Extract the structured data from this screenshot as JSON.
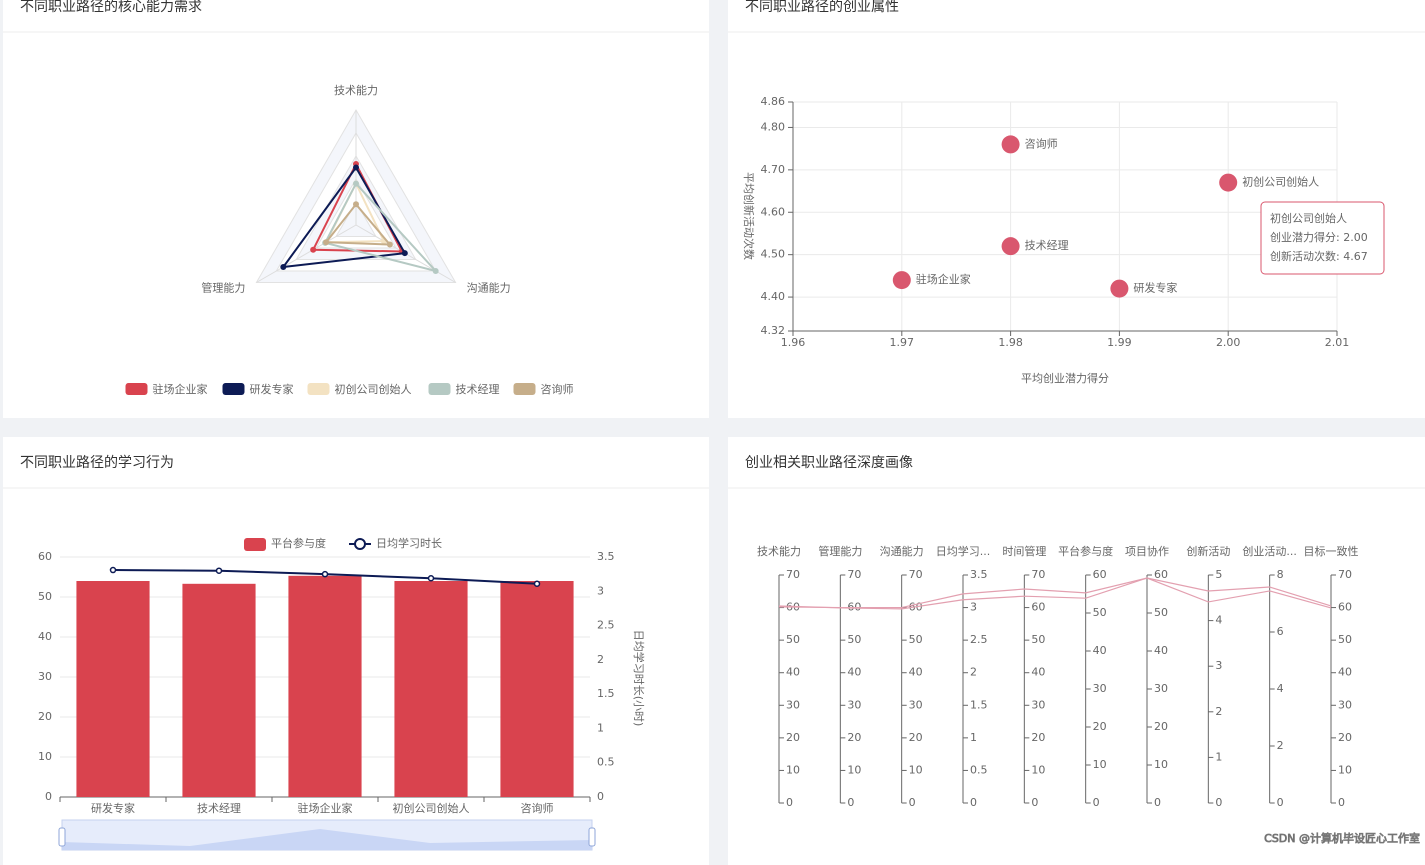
{
  "chart_data": [
    {
      "type": "radar",
      "title": "不同职业路径的核心能力需求",
      "indicators": [
        {
          "name": "技术能力",
          "max": 100
        },
        {
          "name": "沟通能力",
          "max": 100
        },
        {
          "name": "管理能力",
          "max": 100
        }
      ],
      "series": [
        {
          "name": "驻场企业家",
          "color": "#d9434e",
          "values": [
            53,
            46,
            43
          ]
        },
        {
          "name": "研发专家",
          "color": "#0d1b55",
          "values": [
            50,
            49,
            73
          ]
        },
        {
          "name": "初创公司创始人",
          "color": "#f3e2c2",
          "values": [
            36,
            28,
            30
          ]
        },
        {
          "name": "技术经理",
          "color": "#b5c9c3",
          "values": [
            36,
            80,
            31
          ]
        },
        {
          "name": "咨询师",
          "color": "#c6ae8a",
          "values": [
            18,
            34,
            30
          ]
        }
      ],
      "legend": "bottom"
    },
    {
      "type": "scatter",
      "title": "不同职业路径的创业属性",
      "x_label": "平均创业潜力得分",
      "y_label": "平均创新活动次数",
      "color": "#d9576e",
      "labels": [
        "咨询师",
        "初创公司创始人",
        "技术经理",
        "驻场企业家",
        "研发专家"
      ],
      "x": [
        1.98,
        2.0,
        1.98,
        1.97,
        1.99
      ],
      "values": [
        4.76,
        4.67,
        4.52,
        4.44,
        4.42
      ],
      "xlim": [
        1.96,
        2.01
      ],
      "xticks": [
        1.96,
        1.97,
        1.98,
        1.99,
        {
          "value": 2,
          "label": "2.00"
        },
        2.01
      ],
      "ylim": [
        4.32,
        4.86
      ],
      "yticks": [
        4.32,
        {
          "value": 4.4,
          "label": "4.40"
        },
        {
          "value": 4.5,
          "label": "4.50"
        },
        {
          "value": 4.6,
          "label": "4.60"
        },
        {
          "value": 4.7,
          "label": "4.70"
        },
        {
          "value": 4.8,
          "label": "4.80"
        },
        4.86
      ],
      "grid": true,
      "tooltip": {
        "title": "初创公司创始人",
        "lines": [
          "创业潜力得分: 2.00",
          "创新活动次数: 4.67"
        ]
      }
    },
    {
      "type": "bar",
      "title": "不同职业路径的学习行为",
      "categories": [
        "研发专家",
        "技术经理",
        "驻场企业家",
        "初创公司创始人",
        "咨询师"
      ],
      "series": [
        {
          "name": "平台参与度",
          "kind": "bar",
          "color": "#d9434e",
          "values": [
            54,
            53.3,
            55.3,
            54,
            54
          ]
        },
        {
          "name": "日均学习时长",
          "kind": "line",
          "axis": "y2",
          "color": "#0d1b55",
          "values": [
            3.31,
            3.3,
            3.25,
            3.19,
            3.11
          ]
        }
      ],
      "y2_label": "日均学习时长(小时)",
      "ylim": [
        0,
        60
      ],
      "yticks": [
        0,
        10,
        20,
        30,
        40,
        50,
        60
      ],
      "y2lim": [
        0,
        3.5
      ],
      "y2ticks": [
        0,
        0.5,
        1,
        1.5,
        2,
        2.5,
        3,
        3.5
      ],
      "legend": "top"
    },
    {
      "type": "parallel",
      "title": "创业相关职业路径深度画像",
      "color": "#e3a0b0",
      "axes": [
        {
          "name": "技术能力",
          "lim": [
            0,
            70
          ],
          "ticks": [
            0,
            10,
            20,
            30,
            40,
            50,
            60,
            70
          ]
        },
        {
          "name": "管理能力",
          "lim": [
            0,
            70
          ],
          "ticks": [
            0,
            10,
            20,
            30,
            40,
            50,
            60,
            70
          ]
        },
        {
          "name": "沟通能力",
          "lim": [
            0,
            70
          ],
          "ticks": [
            0,
            10,
            20,
            30,
            40,
            50,
            60,
            70
          ]
        },
        {
          "name": "日均学习...",
          "lim": [
            0,
            3.5
          ],
          "ticks": [
            0,
            0.5,
            1,
            1.5,
            2,
            2.5,
            3,
            3.5
          ]
        },
        {
          "name": "时间管理",
          "lim": [
            0,
            70
          ],
          "ticks": [
            0,
            10,
            20,
            30,
            40,
            50,
            60,
            70
          ]
        },
        {
          "name": "平台参与度",
          "lim": [
            0,
            60
          ],
          "ticks": [
            0,
            10,
            20,
            30,
            40,
            50,
            60
          ]
        },
        {
          "name": "项目协作",
          "lim": [
            0,
            60
          ],
          "ticks": [
            0,
            10,
            20,
            30,
            40,
            50,
            60
          ]
        },
        {
          "name": "创新活动",
          "lim": [
            0,
            5
          ],
          "ticks": [
            0,
            1,
            2,
            3,
            4,
            5
          ]
        },
        {
          "name": "创业活动...",
          "lim": [
            0,
            8
          ],
          "ticks": [
            0,
            2,
            4,
            6,
            8
          ]
        },
        {
          "name": "目标一致性",
          "lim": [
            0,
            70
          ],
          "ticks": [
            0,
            10,
            20,
            30,
            40,
            50,
            60,
            70
          ]
        }
      ],
      "lines": [
        {
          "values": [
            60.2,
            60,
            60,
            3.21,
            65.7,
            55.3,
            59.2,
            4.65,
            7.58,
            60.5
          ]
        },
        {
          "values": [
            60.5,
            59.9,
            59.6,
            3.12,
            63.5,
            53.9,
            59.2,
            4.41,
            7.44,
            59.9
          ]
        }
      ]
    }
  ],
  "watermark": "CSDN @计算机毕设匠心工作室"
}
